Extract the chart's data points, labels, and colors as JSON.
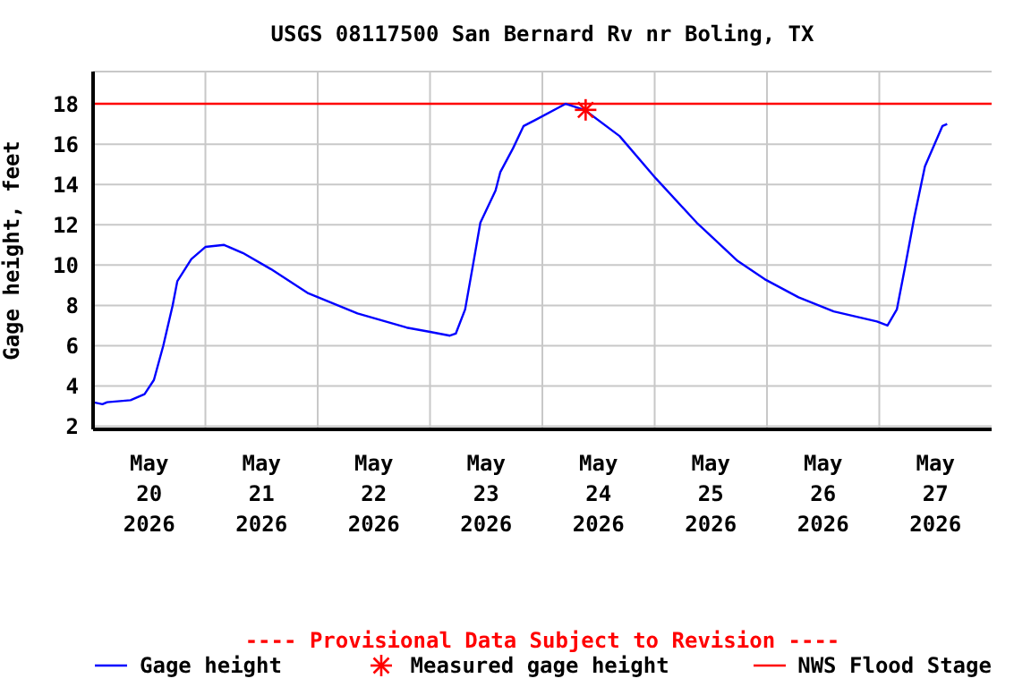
{
  "chart_data": {
    "type": "line",
    "title": "USGS 08117500 San Bernard Rv nr Boling, TX",
    "ylabel": "Gage height, feet",
    "annotations": [
      "---- Provisional Data Subject to Revision ----"
    ],
    "x": [
      "2026-05-20T00:00",
      "2026-05-20T02:00",
      "2026-05-20T03:00",
      "2026-05-20T08:00",
      "2026-05-20T11:00",
      "2026-05-20T13:00",
      "2026-05-20T15:00",
      "2026-05-20T17:00",
      "2026-05-20T18:00",
      "2026-05-20T21:00",
      "2026-05-21T00:00",
      "2026-05-21T04:00",
      "2026-05-21T08:00",
      "2026-05-21T14:00",
      "2026-05-21T22:00",
      "2026-05-22T08:30",
      "2026-05-22T19:00",
      "2026-05-22T23:45",
      "2026-05-23T04:15",
      "2026-05-23T05:30",
      "2026-05-23T07:30",
      "2026-05-23T09:15",
      "2026-05-23T10:45",
      "2026-05-23T14:00",
      "2026-05-23T15:00",
      "2026-05-23T17:45",
      "2026-05-23T20:00",
      "2026-05-23T22:30",
      "2026-05-24T05:00",
      "2026-05-24T09:00",
      "2026-05-24T16:30",
      "2026-05-25T00:15",
      "2026-05-25T09:00",
      "2026-05-25T17:45",
      "2026-05-25T23:30",
      "2026-05-26T06:45",
      "2026-05-26T14:15",
      "2026-05-26T23:30",
      "2026-05-27T01:45",
      "2026-05-27T03:45",
      "2026-05-27T05:30",
      "2026-05-27T07:30",
      "2026-05-27T09:45",
      "2026-05-27T13:30",
      "2026-05-27T14:30"
    ],
    "series": [
      {
        "name": "Gage height",
        "color": "#0000ff",
        "values": [
          3.2,
          3.1,
          3.2,
          3.3,
          3.6,
          4.3,
          6.0,
          8.0,
          9.2,
          10.3,
          10.9,
          11.0,
          10.6,
          9.8,
          8.6,
          7.6,
          6.9,
          6.7,
          6.5,
          6.6,
          7.8,
          10.1,
          12.1,
          13.7,
          14.6,
          15.8,
          16.9,
          17.2,
          18.0,
          17.7,
          16.4,
          14.3,
          12.1,
          10.2,
          9.3,
          8.4,
          7.7,
          7.2,
          7.0,
          7.8,
          9.9,
          12.4,
          14.9,
          16.9,
          17.0
        ]
      },
      {
        "name": "Measured gage height",
        "type": "scatter",
        "color": "#ff0000",
        "marker": "cross",
        "x": [
          "2026-05-24T09:15"
        ],
        "values": [
          17.7
        ]
      }
    ],
    "xlim": [
      "2026-05-20T00:00",
      "2026-05-28T00:00"
    ],
    "xticks": [
      {
        "value": "2026-05-20T12:00",
        "label": "May\n20\n2026"
      },
      {
        "value": "2026-05-21T00:00",
        "label": null
      },
      {
        "value": "2026-05-21T12:00",
        "label": "May\n21\n2026"
      },
      {
        "value": "2026-05-22T00:00",
        "label": null
      },
      {
        "value": "2026-05-22T12:00",
        "label": "May\n22\n2026"
      },
      {
        "value": "2026-05-23T00:00",
        "label": null
      },
      {
        "value": "2026-05-23T12:00",
        "label": "May\n23\n2026"
      },
      {
        "value": "2026-05-24T00:00",
        "label": null
      },
      {
        "value": "2026-05-24T12:00",
        "label": "May\n24\n2026"
      },
      {
        "value": "2026-05-25T00:00",
        "label": null
      },
      {
        "value": "2026-05-25T12:00",
        "label": "May\n25\n2026"
      },
      {
        "value": "2026-05-26T00:00",
        "label": null
      },
      {
        "value": "2026-05-26T12:00",
        "label": "May\n26\n2026"
      },
      {
        "value": "2026-05-27T00:00",
        "label": null
      },
      {
        "value": "2026-05-27T12:00",
        "label": "May\n27\n2026"
      }
    ],
    "ylim": [
      1.85,
      19.6
    ],
    "yticks": [
      2,
      4,
      6,
      8,
      10,
      12,
      14,
      16,
      18
    ],
    "ref_lines": [
      {
        "axis": "y",
        "value": 18,
        "label": "NWS Flood Stage",
        "color": "#ff0000"
      }
    ],
    "grid": true,
    "legend": "bottom"
  }
}
